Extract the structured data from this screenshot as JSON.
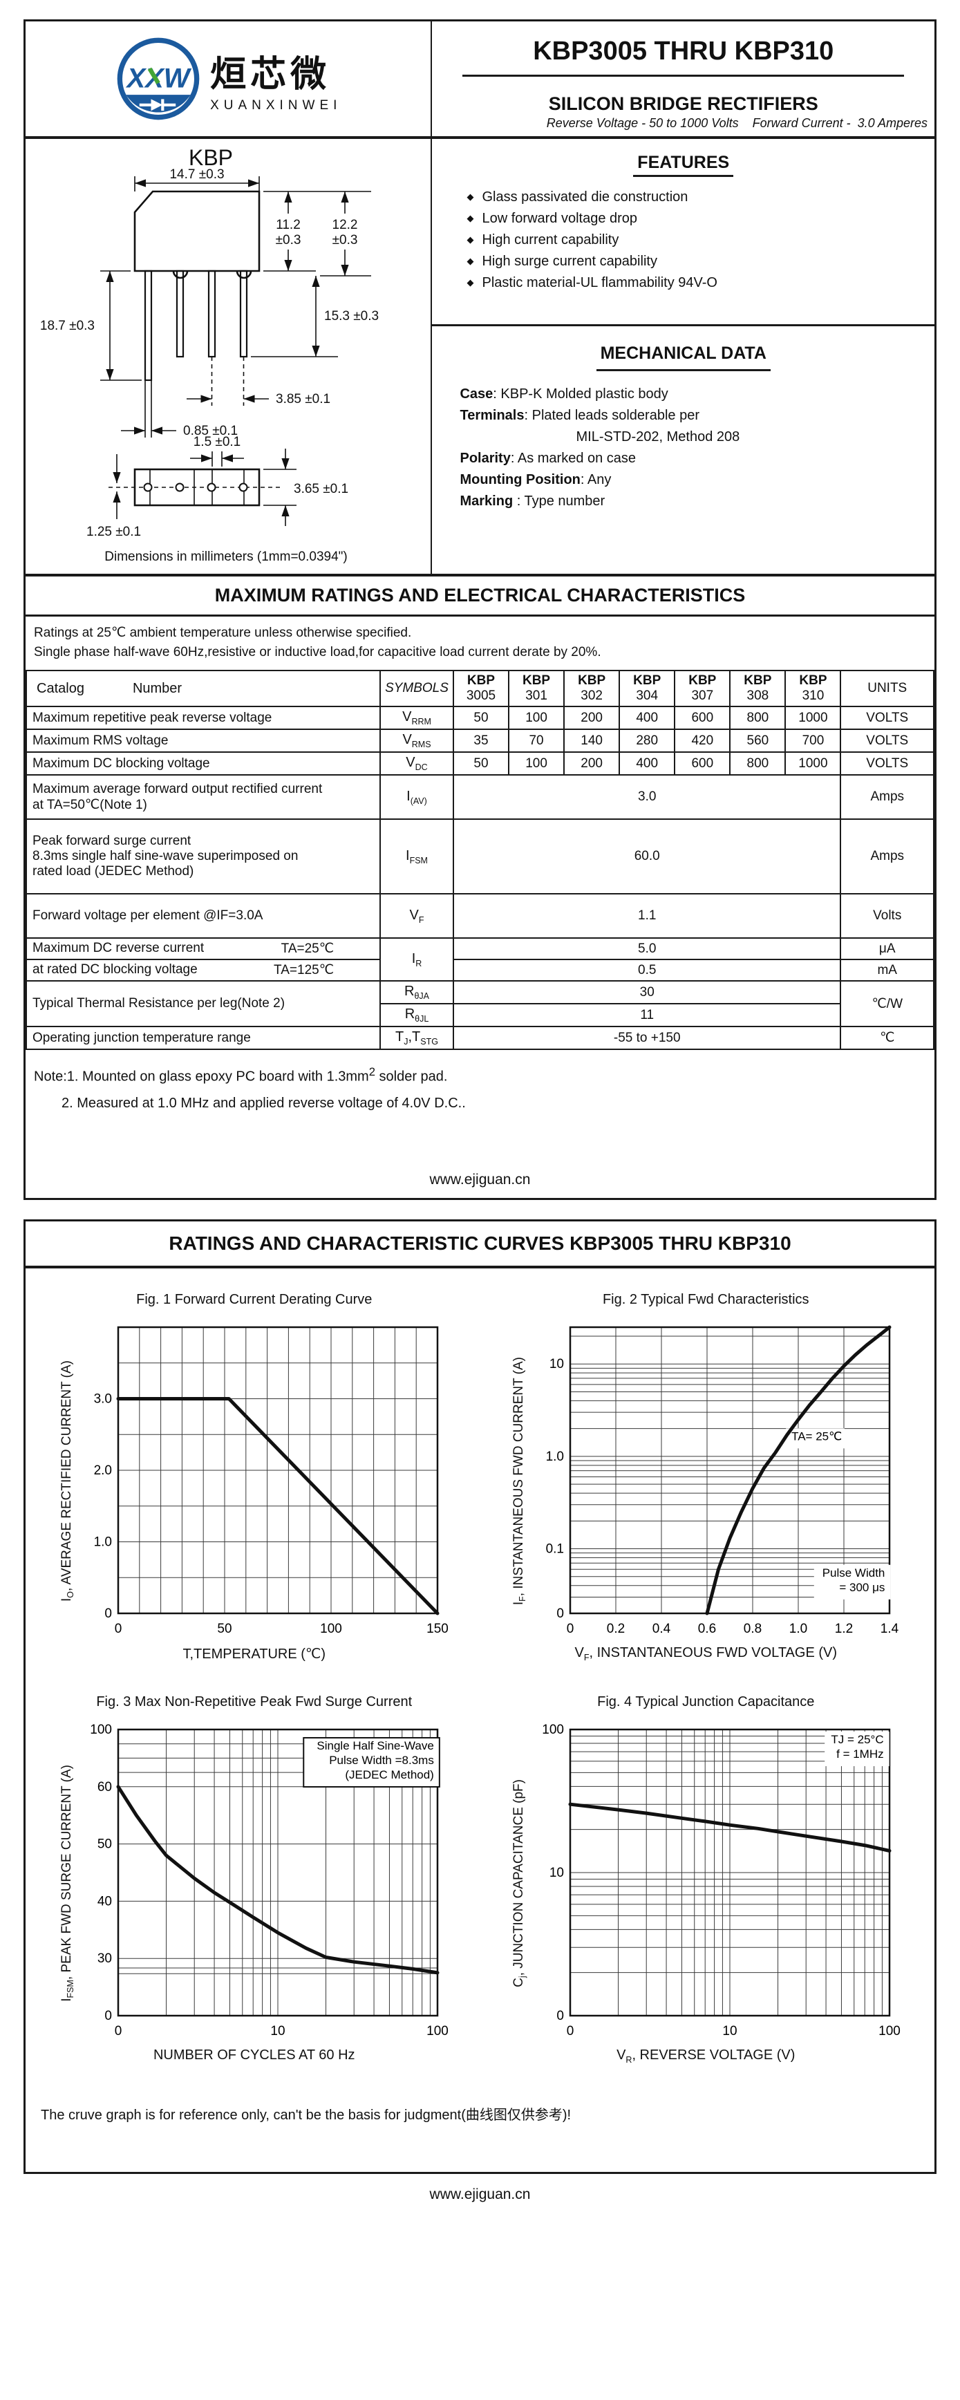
{
  "brand_colors": {
    "blue": "#1b5a9e",
    "green": "#43a536"
  },
  "page1": {
    "logo": {
      "mark": "XXW",
      "cn": "烜芯微",
      "en": "XUANXINWEI"
    },
    "title": "KBP3005 THRU KBP310",
    "subtitle": "SILICON BRIDGE RECTIFIERS",
    "tagline": "Reverse Voltage - 50 to 1000 Volts    Forward Current -  3.0 Amperes",
    "package": {
      "name": "KBP",
      "caption": "Dimensions in millimeters (1mm=0.0394\")",
      "dims": {
        "width": "14.7 ±0.3",
        "bodyh1": "11.2",
        "bodyh1b": "±0.3",
        "bodyh2": "12.2",
        "bodyh2b": "±0.3",
        "leadlong": "18.7 ±0.3",
        "leadshort": "15.3 ±0.3",
        "pitch": "3.85 ±0.1",
        "leadw": "0.85 ±0.1",
        "offset": "1.5 ±0.1",
        "bvh": "3.65 ±0.1",
        "holeoff": "1.25 ±0.1"
      }
    },
    "features": {
      "heading": "FEATURES",
      "bullet": "◆",
      "items": [
        "Glass passivated die construction",
        "Low forward voltage drop",
        "High current capability",
        "High  surge current capability",
        "Plastic material-UL flammability 94V-O"
      ]
    },
    "mechanical": {
      "heading": "MECHANICAL DATA",
      "lines": [
        {
          "label": "Case",
          "text": ": KBP-K Molded plastic body"
        },
        {
          "label": "Terminals",
          "text": ": Plated leads solderable per"
        },
        {
          "label": "",
          "text": "MIL-STD-202, Method 208"
        },
        {
          "label": "Polarity",
          "text": ": As marked on case"
        },
        {
          "label": "Mounting Position",
          "text": ": Any"
        },
        {
          "label": "Marking ",
          "text": ": Type number"
        }
      ]
    },
    "ratings": {
      "heading": "MAXIMUM RATINGS AND ELECTRICAL CHARACTERISTICS",
      "note1": "Ratings at 25℃ ambient temperature unless otherwise specified.",
      "note2": "Single phase half-wave 60Hz,resistive or inductive load,for capacitive load current derate by 20%."
    },
    "table": {
      "header": {
        "catalog": "Catalog",
        "number": "Number",
        "symbols": "SYMBOLS",
        "parts": [
          {
            "l1": "KBP",
            "l2": "3005"
          },
          {
            "l1": "KBP",
            "l2": "301"
          },
          {
            "l1": "KBP",
            "l2": "302"
          },
          {
            "l1": "KBP",
            "l2": "304"
          },
          {
            "l1": "KBP",
            "l2": "307"
          },
          {
            "l1": "KBP",
            "l2": "308"
          },
          {
            "l1": "KBP",
            "l2": "310"
          }
        ],
        "units": "UNITS"
      },
      "rows": {
        "vrrm": {
          "param": "Maximum repetitive peak reverse voltage",
          "sym": {
            "b": "V",
            "s": "RRM"
          },
          "vals": [
            "50",
            "100",
            "200",
            "400",
            "600",
            "800",
            "1000"
          ],
          "unit": "VOLTS"
        },
        "vrms": {
          "param": "Maximum RMS voltage",
          "sym": {
            "b": "V",
            "s": "RMS"
          },
          "vals": [
            "35",
            "70",
            "140",
            "280",
            "420",
            "560",
            "700"
          ],
          "unit": "VOLTS"
        },
        "vdc": {
          "param": "Maximum DC blocking voltage",
          "sym": {
            "b": "V",
            "s": "DC"
          },
          "vals": [
            "50",
            "100",
            "200",
            "400",
            "600",
            "800",
            "1000"
          ],
          "unit": "VOLTS"
        },
        "iav": {
          "param_l1": "Maximum average forward output rectified current",
          "param_l2": "at TA=50℃(Note 1)",
          "sym": {
            "b": "I",
            "s": "(AV)"
          },
          "val": "3.0",
          "unit": "Amps"
        },
        "ifsm": {
          "param_l1": "Peak forward surge current",
          "param_l2": "8.3ms single half sine-wave superimposed on",
          "param_l3": "rated load (JEDEC Method)",
          "sym": {
            "b": "I",
            "s": "FSM"
          },
          "val": "60.0",
          "unit": "Amps"
        },
        "vf": {
          "param": "Forward voltage per element  @IF=3.0A",
          "sym": {
            "b": "V",
            "s": "F"
          },
          "val": "1.1",
          "unit": "Volts"
        },
        "ir": {
          "param_l1": "Maximum DC reverse current",
          "cond1": "TA=25℃",
          "param_l2": "at rated DC blocking voltage",
          "cond2": "TA=125℃",
          "sym": {
            "b": "I",
            "s": "R"
          },
          "val1": "5.0",
          "unit1": "μA",
          "val2": "0.5",
          "unit2": "mA"
        },
        "rth": {
          "param": "Typical Thermal Resistance per leg(Note 2)",
          "sym1": {
            "b": "R",
            "s": "θJA"
          },
          "val1": "30",
          "sym2": {
            "b": "R",
            "s": "θJL"
          },
          "val2": "11",
          "unit": "℃/W"
        },
        "tj": {
          "param": "Operating junction temperature range",
          "sym": {
            "b1": "T",
            "s1": "J",
            "b2": ",T",
            "s2": "STG"
          },
          "val": "-55 to +150",
          "unit": "℃"
        }
      }
    },
    "notes": {
      "n1a": "Note:1. Mounted on  glass epoxy  PC board with 1.3mm",
      "n1sup": "2",
      "n1b": " solder pad.",
      "n2": "2. Measured at 1.0 MHz and applied reverse voltage of 4.0V D.C.."
    },
    "footer": "www.ejiguan.cn"
  },
  "page2": {
    "heading": "RATINGS AND CHARACTERISTIC CURVES KBP3005 THRU KBP310",
    "disclaimer": "The cruve graph is for reference only, can't be the basis for judgment(曲线图仅供参考)!",
    "footer": "www.ejiguan.cn"
  },
  "chart_data": [
    {
      "type": "line",
      "title": "Fig. 1 Forward Current Derating Curve",
      "xlabel": {
        "pre": "T,TEMPERATURE (℃)",
        "sub": "",
        "post": ""
      },
      "ylabel": {
        "pre": "I",
        "sub": "O",
        "post": ", AVERAGE RECTIFIED CURRENT (A)"
      },
      "xscale": {
        "type": "linear",
        "min": 0,
        "max": 150
      },
      "yscale": {
        "type": "linear",
        "min": 0,
        "max": 4
      },
      "xgrid": [
        10,
        20,
        30,
        40,
        50,
        60,
        70,
        80,
        90,
        100,
        110,
        120,
        130,
        140
      ],
      "ygrid": [
        0.5,
        1,
        1.5,
        2,
        2.5,
        3,
        3.5
      ],
      "xticks": [
        {
          "v": 0,
          "t": "0"
        },
        {
          "v": 50,
          "t": "50"
        },
        {
          "v": 100,
          "t": "100"
        },
        {
          "v": 150,
          "t": "150"
        }
      ],
      "yticks": [
        {
          "v": 0,
          "t": "0"
        },
        {
          "v": 1,
          "t": "1.0"
        },
        {
          "v": 2,
          "t": "2.0"
        },
        {
          "v": 3,
          "t": "3.0"
        }
      ],
      "series": [
        {
          "name": "derating",
          "points": [
            [
              0,
              3
            ],
            [
              52,
              3
            ],
            [
              150,
              0
            ]
          ]
        }
      ],
      "annotations": []
    },
    {
      "type": "line",
      "title": "Fig. 2  Typical Fwd Characteristics",
      "xlabel": {
        "pre": "V",
        "sub": "F",
        "post": ", INSTANTANEOUS FWD VOLTAGE (V)"
      },
      "ylabel": {
        "pre": "I",
        "sub": "F",
        "post": ", INSTANTANEOUS FWD CURRENT (A)"
      },
      "xscale": {
        "type": "linear",
        "min": 0,
        "max": 1.4
      },
      "yscale": {
        "type": "log",
        "min": 0.02,
        "max": 25
      },
      "xgrid": [
        0.2,
        0.4,
        0.6,
        0.8,
        1.0,
        1.2
      ],
      "ygrid": [
        0.03,
        0.04,
        0.05,
        0.06,
        0.07,
        0.08,
        0.09,
        0.1,
        0.2,
        0.3,
        0.4,
        0.5,
        0.6,
        0.7,
        0.8,
        0.9,
        1,
        2,
        3,
        4,
        5,
        6,
        7,
        8,
        9,
        10,
        20
      ],
      "xticks": [
        {
          "v": 0,
          "t": "0"
        },
        {
          "v": 0.2,
          "t": "0.2"
        },
        {
          "v": 0.4,
          "t": "0.4"
        },
        {
          "v": 0.6,
          "t": "0.6"
        },
        {
          "v": 0.8,
          "t": "0.8"
        },
        {
          "v": 1.0,
          "t": "1.0"
        },
        {
          "v": 1.2,
          "t": "1.2"
        },
        {
          "v": 1.4,
          "t": "1.4"
        }
      ],
      "yticks": [
        {
          "v": 0.02,
          "t": "0"
        },
        {
          "v": 0.1,
          "t": "0.1"
        },
        {
          "v": 1,
          "t": "1.0"
        },
        {
          "v": 10,
          "t": "10"
        }
      ],
      "series": [
        {
          "name": "fwd",
          "points": [
            [
              0.6,
              0.02
            ],
            [
              0.65,
              0.06
            ],
            [
              0.7,
              0.13
            ],
            [
              0.75,
              0.25
            ],
            [
              0.8,
              0.45
            ],
            [
              0.85,
              0.75
            ],
            [
              0.9,
              1.1
            ],
            [
              0.95,
              1.7
            ],
            [
              1.0,
              2.5
            ],
            [
              1.05,
              3.6
            ],
            [
              1.1,
              5.0
            ],
            [
              1.15,
              7.0
            ],
            [
              1.2,
              9.5
            ],
            [
              1.25,
              12.5
            ],
            [
              1.3,
              16
            ],
            [
              1.35,
              20
            ],
            [
              1.4,
              25
            ]
          ]
        }
      ],
      "annotations": [
        {
          "lines": [
            "TA=  25℃"
          ],
          "x": 0.97,
          "y": 1.5,
          "anchor": "start",
          "bg": true
        },
        {
          "lines": [
            "Pulse Width",
            "=  300 μs"
          ],
          "x": 1.38,
          "y": 0.05,
          "anchor": "end",
          "bg": true
        }
      ]
    },
    {
      "type": "line",
      "title": "Fig. 3  Max Non-Repetitive Peak Fwd Surge Current",
      "xlabel": {
        "pre": "NUMBER OF CYCLES AT 60 Hz",
        "sub": "",
        "post": ""
      },
      "ylabel": {
        "pre": "I",
        "sub": "FSM",
        "post": ",  PEAK FWD SURGE CURRENT (A)"
      },
      "xscale": {
        "type": "log",
        "min": 1,
        "max": 100
      },
      "yscale": {
        "type": "stops",
        "stops": [
          [
            0,
            0
          ],
          [
            30,
            0.2
          ],
          [
            40,
            0.4
          ],
          [
            50,
            0.6
          ],
          [
            60,
            0.8
          ],
          [
            100,
            1
          ]
        ]
      },
      "xgrid": [
        2,
        3,
        4,
        5,
        6,
        7,
        8,
        9,
        10,
        20,
        30,
        40,
        50,
        60,
        70,
        80,
        90
      ],
      "ygrid": [
        22,
        25,
        30,
        40,
        50,
        60,
        70,
        80,
        90
      ],
      "xticks": [
        {
          "v": 1,
          "t": "0"
        },
        {
          "v": 10,
          "t": "10"
        },
        {
          "v": 100,
          "t": "100"
        }
      ],
      "yticks": [
        {
          "v": 0,
          "t": "0"
        },
        {
          "v": 30,
          "t": "30"
        },
        {
          "v": 40,
          "t": "40"
        },
        {
          "v": 50,
          "t": "50"
        },
        {
          "v": 60,
          "t": "60"
        },
        {
          "v": 100,
          "t": "100"
        }
      ],
      "series": [
        {
          "name": "surge",
          "points": [
            [
              1,
              60
            ],
            [
              1.3,
              55
            ],
            [
              1.7,
              50.5
            ],
            [
              2,
              48
            ],
            [
              3,
              44
            ],
            [
              4,
              41.5
            ],
            [
              5,
              39.8
            ],
            [
              7,
              37.2
            ],
            [
              10,
              34.5
            ],
            [
              15,
              31.8
            ],
            [
              20,
              30.2
            ],
            [
              30,
              28.2
            ],
            [
              50,
              26
            ],
            [
              70,
              24.5
            ],
            [
              100,
              22.5
            ]
          ]
        }
      ],
      "annotations": [
        {
          "lines": [
            "Single Half Sine-Wave",
            "Pulse Width =8.3ms",
            "(JEDEC Method)"
          ],
          "x": 95,
          "y": 86,
          "anchor": "end",
          "boxed": true
        }
      ]
    },
    {
      "type": "line",
      "title": "Fig. 4  Typical Junction Capacitance",
      "xlabel": {
        "pre": "V",
        "sub": "R",
        "post": ", REVERSE VOLTAGE (V)"
      },
      "ylabel": {
        "pre": "C",
        "sub": "j",
        "post": ", JUNCTION CAPACITANCE (pF)"
      },
      "xscale": {
        "type": "log",
        "min": 1,
        "max": 100
      },
      "yscale": {
        "type": "log",
        "min": 1,
        "max": 100
      },
      "xgrid": [
        2,
        3,
        4,
        5,
        6,
        7,
        8,
        9,
        10,
        20,
        30,
        40,
        50,
        60,
        70,
        80,
        90
      ],
      "ygrid": [
        2,
        3,
        4,
        5,
        6,
        7,
        8,
        9,
        10,
        20,
        30,
        40,
        50,
        60,
        70,
        80,
        90
      ],
      "xticks": [
        {
          "v": 1,
          "t": "0"
        },
        {
          "v": 10,
          "t": "10"
        },
        {
          "v": 100,
          "t": "100"
        }
      ],
      "yticks": [
        {
          "v": 1,
          "t": "0"
        },
        {
          "v": 10,
          "t": "10"
        },
        {
          "v": 100,
          "t": "100"
        }
      ],
      "series": [
        {
          "name": "cj",
          "points": [
            [
              1,
              30
            ],
            [
              1.5,
              28.5
            ],
            [
              2,
              27.5
            ],
            [
              3,
              26
            ],
            [
              5,
              24
            ],
            [
              7,
              22.8
            ],
            [
              10,
              21.5
            ],
            [
              15,
              20.3
            ],
            [
              20,
              19.3
            ],
            [
              30,
              18
            ],
            [
              50,
              16.5
            ],
            [
              70,
              15.5
            ],
            [
              100,
              14.2
            ]
          ]
        }
      ],
      "annotations": [
        {
          "lines": [
            "TJ = 25°C",
            "f = 1MHz"
          ],
          "x": 92,
          "y": 80,
          "anchor": "end",
          "bg": true
        }
      ]
    }
  ]
}
